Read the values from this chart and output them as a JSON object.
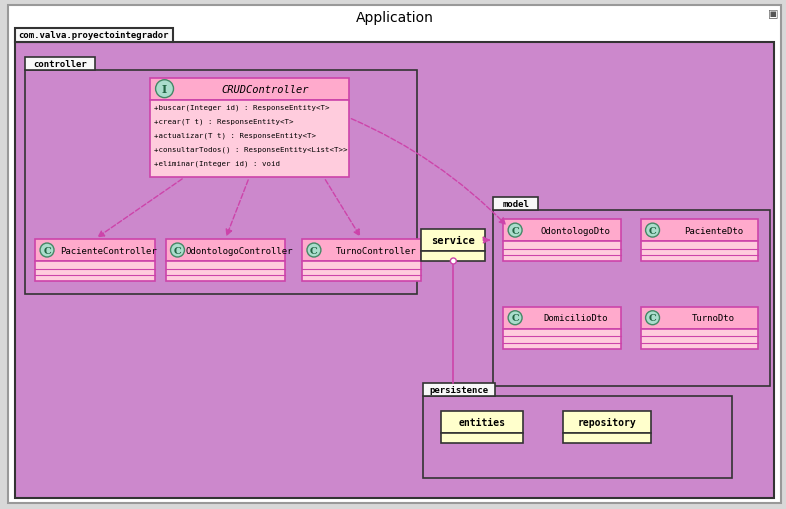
{
  "title": "Application",
  "bg_outer": "#ffffff",
  "bg_diagram": "#cc88cc",
  "bg_class_header": "#ffaacc",
  "bg_class_body": "#ffccdd",
  "bg_service": "#ffffcc",
  "bg_tab": "#f8f8f8",
  "color_border": "#333333",
  "color_pink_border": "#cc44aa",
  "color_circle": "#aaddcc",
  "color_circle_border": "#448866",
  "color_circle_text": "#226644",
  "title_fontsize": 10,
  "package_name": "com.valva.proyectointegrador",
  "controller_label": "controller",
  "model_label": "model",
  "persistence_label": "persistence",
  "crud_title": "CRUDController",
  "crud_methods": [
    "+buscar(Integer id) : ResponseEntity<T>",
    "+crear(T t) : ResponseEntity<T>",
    "+actualizar(T t) : ResponseEntity<T>",
    "+consultarTodos() : ResponseEntity<List<T>>",
    "+eliminar(Integer id) : void"
  ],
  "controllers": [
    "PacienteController",
    "OdontologoController",
    "TurnoController"
  ],
  "model_classes": [
    "OdontologoDto",
    "PacienteDto",
    "DomicilioDto",
    "TurnoDto"
  ],
  "service_label": "service",
  "entities_label": "entities",
  "repository_label": "repository"
}
